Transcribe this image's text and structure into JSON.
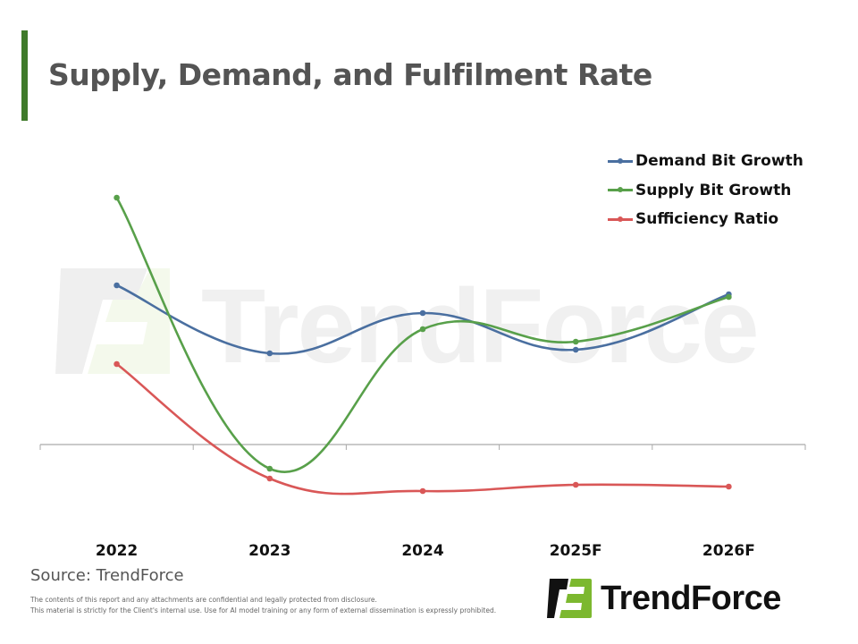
{
  "header": {
    "title": "Supply, Demand, and Fulfilment Rate"
  },
  "colors": {
    "accent": "#3f7a2a",
    "demand": "#4a6fa0",
    "supply": "#58a04a",
    "sufficiency": "#d95757",
    "axis": "#aaaaaa",
    "logo_green": "#7cb82f",
    "logo_dark": "#111111"
  },
  "chart_data": {
    "type": "line",
    "title": "Supply, Demand, and Fulfilment Rate",
    "xlabel": "",
    "ylabel": "",
    "categories": [
      "2022",
      "2023",
      "2024",
      "2025F",
      "2026F"
    ],
    "series": [
      {
        "name": "Demand Bit Growth",
        "color": "#4a6fa0",
        "values": [
          17.8,
          10.2,
          14.7,
          10.6,
          16.8
        ]
      },
      {
        "name": "Supply Bit Growth",
        "color": "#58a04a",
        "values": [
          27.6,
          -2.7,
          12.9,
          11.5,
          16.5
        ]
      },
      {
        "name": "Sufficiency Ratio",
        "color": "#d95757",
        "values": [
          9.0,
          -3.8,
          -5.2,
          -4.5,
          -4.7
        ]
      }
    ],
    "ylim": [
      -10,
      35
    ],
    "y_axis_labels_shown": false,
    "grid": false,
    "smooth": true,
    "legend_position": "top-right",
    "watermark": "TrendForce"
  },
  "footer": {
    "source": "Source: TrendForce",
    "disclaimer_lines": [
      "The contents of this report and any attachments are confidential and legally protected from disclosure.",
      "This material is strictly for the Client's internal use. Use for AI model training or any form of external dissemination is expressly prohibited."
    ],
    "logo_text": "TrendForce"
  }
}
